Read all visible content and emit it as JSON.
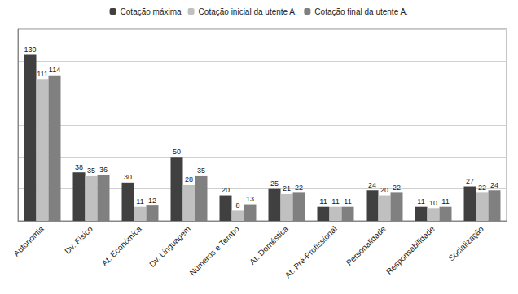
{
  "chart_data": {
    "type": "bar",
    "categories": [
      "Autonomia",
      "Dv. Físico",
      "At. Económica",
      "Dv. Linguagem",
      "Números e Tempo",
      "At. Doméstica",
      "At. Pré-Profissional",
      "Personalidade",
      "Responsabilidade",
      "Socialização"
    ],
    "series": [
      {
        "name": "Cotação máxima",
        "color": "#404040",
        "values": [
          130,
          38,
          30,
          50,
          20,
          25,
          11,
          24,
          11,
          27
        ]
      },
      {
        "name": "Cotação inicial da utente A.",
        "color": "#c0c0c0",
        "values": [
          111,
          35,
          11,
          28,
          8,
          21,
          11,
          20,
          10,
          22
        ]
      },
      {
        "name": "Cotação final da utente A.",
        "color": "#808080",
        "values": [
          114,
          36,
          12,
          35,
          13,
          22,
          11,
          22,
          11,
          24
        ]
      }
    ],
    "ylim": [
      0,
      150
    ],
    "yticks": [
      0,
      25,
      50,
      75,
      100,
      125,
      150
    ],
    "grid": true,
    "legend": "top",
    "data_labels": true,
    "tick_labels": "x"
  }
}
